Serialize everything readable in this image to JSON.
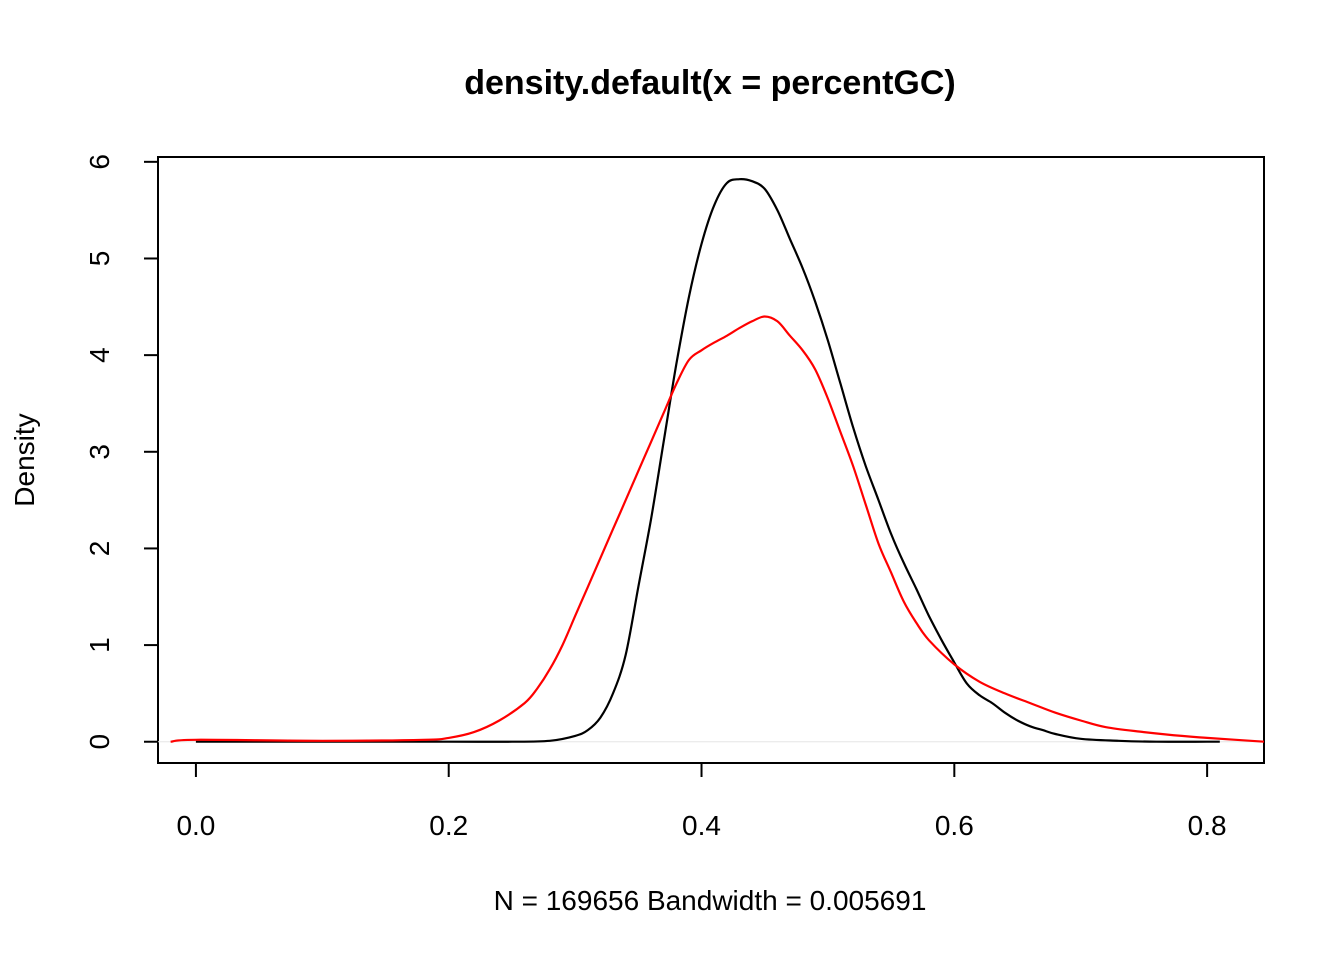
{
  "chart_data": {
    "type": "line",
    "title": "density.default(x = percentGC)",
    "xlabel": "N = 169656   Bandwidth = 0.005691",
    "ylabel": "Density",
    "xlim": [
      -0.03,
      0.845
    ],
    "ylim": [
      -0.22,
      6.05
    ],
    "x_ticks": [
      0.0,
      0.2,
      0.4,
      0.6,
      0.8
    ],
    "x_tick_labels": [
      "0.0",
      "0.2",
      "0.4",
      "0.6",
      "0.8"
    ],
    "y_ticks": [
      0,
      1,
      2,
      3,
      4,
      5,
      6
    ],
    "y_tick_labels": [
      "0",
      "1",
      "2",
      "3",
      "4",
      "5",
      "6"
    ],
    "grid": false,
    "legend": "none",
    "series": [
      {
        "color": "#000000",
        "x": [
          0.0,
          0.1,
          0.2,
          0.25,
          0.28,
          0.3,
          0.31,
          0.32,
          0.33,
          0.34,
          0.35,
          0.36,
          0.37,
          0.38,
          0.39,
          0.4,
          0.41,
          0.42,
          0.43,
          0.44,
          0.45,
          0.46,
          0.47,
          0.48,
          0.49,
          0.5,
          0.51,
          0.52,
          0.53,
          0.54,
          0.55,
          0.56,
          0.57,
          0.58,
          0.59,
          0.6,
          0.61,
          0.62,
          0.63,
          0.64,
          0.65,
          0.66,
          0.67,
          0.68,
          0.7,
          0.73,
          0.76,
          0.8,
          0.81
        ],
        "values": [
          0.0,
          0.0,
          0.0,
          0.0,
          0.01,
          0.06,
          0.12,
          0.25,
          0.5,
          0.9,
          1.6,
          2.3,
          3.1,
          3.9,
          4.6,
          5.15,
          5.55,
          5.78,
          5.82,
          5.8,
          5.72,
          5.5,
          5.2,
          4.9,
          4.55,
          4.15,
          3.7,
          3.25,
          2.85,
          2.5,
          2.15,
          1.85,
          1.58,
          1.3,
          1.05,
          0.82,
          0.6,
          0.48,
          0.4,
          0.3,
          0.22,
          0.16,
          0.12,
          0.08,
          0.03,
          0.01,
          0.0,
          0.0,
          0.0
        ]
      },
      {
        "color": "#ff0000",
        "x": [
          -0.02,
          0.0,
          0.1,
          0.18,
          0.2,
          0.22,
          0.24,
          0.26,
          0.27,
          0.28,
          0.29,
          0.3,
          0.31,
          0.32,
          0.33,
          0.34,
          0.35,
          0.36,
          0.37,
          0.38,
          0.39,
          0.4,
          0.41,
          0.42,
          0.43,
          0.44,
          0.45,
          0.46,
          0.47,
          0.48,
          0.49,
          0.5,
          0.51,
          0.52,
          0.53,
          0.54,
          0.55,
          0.56,
          0.57,
          0.58,
          0.6,
          0.62,
          0.64,
          0.66,
          0.68,
          0.7,
          0.72,
          0.75,
          0.78,
          0.8,
          0.845
        ],
        "values": [
          0.0,
          0.02,
          0.01,
          0.02,
          0.04,
          0.1,
          0.22,
          0.4,
          0.55,
          0.75,
          1.0,
          1.3,
          1.6,
          1.9,
          2.2,
          2.5,
          2.8,
          3.1,
          3.4,
          3.7,
          3.95,
          4.05,
          4.13,
          4.2,
          4.28,
          4.35,
          4.4,
          4.35,
          4.2,
          4.05,
          3.85,
          3.55,
          3.2,
          2.85,
          2.45,
          2.05,
          1.75,
          1.45,
          1.23,
          1.05,
          0.8,
          0.62,
          0.5,
          0.4,
          0.3,
          0.22,
          0.15,
          0.1,
          0.06,
          0.04,
          0.0
        ]
      }
    ]
  }
}
